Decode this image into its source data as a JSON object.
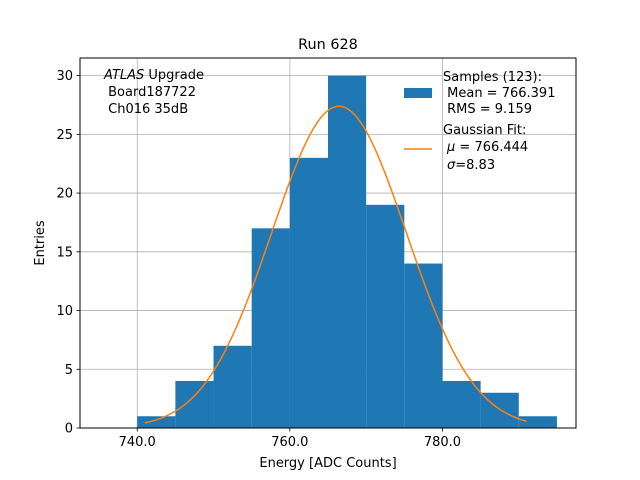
{
  "chart_data": {
    "type": "bar",
    "title": "Run 628",
    "xlabel": "Energy [ADC Counts]",
    "ylabel": "Entries",
    "xlim": [
      732.5,
      797.5
    ],
    "ylim": [
      0,
      31.5
    ],
    "grid": true,
    "x_ticks": [
      740,
      760,
      780
    ],
    "x_tick_labels": [
      "740.0",
      "760.0",
      "780.0"
    ],
    "y_ticks": [
      0,
      5,
      10,
      15,
      20,
      25,
      30
    ],
    "y_tick_labels": [
      "0",
      "5",
      "10",
      "15",
      "20",
      "25",
      "30"
    ],
    "bin_edges": [
      740,
      745,
      750,
      755,
      760,
      765,
      770,
      775,
      780,
      785,
      790,
      795
    ],
    "counts": [
      1,
      4,
      7,
      17,
      23,
      30,
      19,
      14,
      4,
      3,
      1
    ],
    "histogram_color": "#1f77b4",
    "fit": {
      "mu": 766.444,
      "sigma": 8.83,
      "amplitude": 27.4,
      "x_range": [
        741,
        791
      ],
      "color": "#ff7f0e"
    },
    "annotation": {
      "italic_part": "ATLAS",
      "first_line_rest": " Upgrade",
      "lines": [
        " Board187722",
        " Ch016 35dB"
      ]
    },
    "legend": {
      "position": "upper-right",
      "samples_lines": [
        "Samples (123):",
        " Mean = 766.391",
        " RMS = 9.159"
      ],
      "fit_title": "Gaussian Fit:",
      "fit_mu_symbol": "μ",
      "fit_mu_value": " = 766.444",
      "fit_sigma_symbol": "σ",
      "fit_sigma_value": "=8.83"
    }
  }
}
